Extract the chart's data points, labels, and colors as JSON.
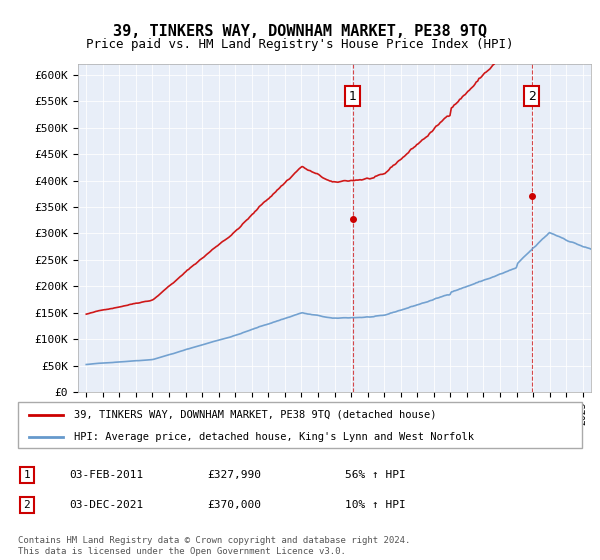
{
  "title": "39, TINKERS WAY, DOWNHAM MARKET, PE38 9TQ",
  "subtitle": "Price paid vs. HM Land Registry's House Price Index (HPI)",
  "red_label": "39, TINKERS WAY, DOWNHAM MARKET, PE38 9TQ (detached house)",
  "blue_label": "HPI: Average price, detached house, King's Lynn and West Norfolk",
  "annotation1": {
    "num": "1",
    "date": "03-FEB-2011",
    "price": "£327,990",
    "pct": "56% ↑ HPI"
  },
  "annotation2": {
    "num": "2",
    "date": "03-DEC-2021",
    "price": "£370,000",
    "pct": "10% ↑ HPI"
  },
  "footer": "Contains HM Land Registry data © Crown copyright and database right 2024.\nThis data is licensed under the Open Government Licence v3.0.",
  "ylim": [
    0,
    620000
  ],
  "yticks": [
    0,
    50000,
    100000,
    150000,
    200000,
    250000,
    300000,
    350000,
    400000,
    450000,
    500000,
    550000,
    600000
  ],
  "xlim_start": 1994.5,
  "xlim_end": 2025.5,
  "sale1_x": 2011.09,
  "sale1_y": 327990,
  "sale2_x": 2021.92,
  "sale2_y": 370000,
  "bg_color": "#e8eef8",
  "red_color": "#cc0000",
  "blue_color": "#6699cc"
}
